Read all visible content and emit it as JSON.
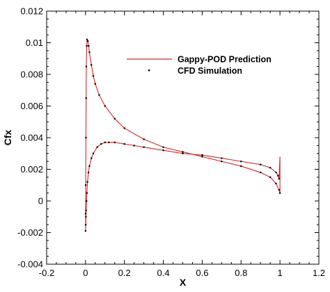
{
  "chart_data": {
    "type": "line",
    "title": "",
    "xlabel": "X",
    "ylabel": "Cfx",
    "xlim": [
      -0.2,
      1.2
    ],
    "ylim": [
      -0.004,
      0.012
    ],
    "xticks": [
      "-0.2",
      "0",
      "0.2",
      "0.4",
      "0.6",
      "0.8",
      "1",
      "1.2"
    ],
    "xtick_values": [
      -0.2,
      0,
      0.2,
      0.4,
      0.6,
      0.8,
      1.0,
      1.2
    ],
    "yticks": [
      "-0.004",
      "-0.002",
      "0",
      "0.002",
      "0.004",
      "0.006",
      "0.008",
      "0.01",
      "0.012"
    ],
    "ytick_values": [
      -0.004,
      -0.002,
      0,
      0.002,
      0.004,
      0.006,
      0.008,
      0.01,
      0.012
    ],
    "grid": false,
    "legend": "top-right",
    "colors": {
      "prediction": "#d62728",
      "simulation": "#000000"
    },
    "series": [
      {
        "name": "Gappy-POD Prediction",
        "style": "line",
        "x": [
          0.0,
          0.0005,
          0.001,
          0.002,
          0.003,
          0.004,
          0.006,
          0.008,
          0.012,
          0.016,
          0.02,
          0.03,
          0.04,
          0.05,
          0.07,
          0.1,
          0.15,
          0.2,
          0.3,
          0.4,
          0.5,
          0.6,
          0.7,
          0.8,
          0.9,
          0.95,
          0.98,
          0.995,
          1.0,
          1.0,
          0.995,
          0.99,
          0.98,
          0.95,
          0.9,
          0.8,
          0.7,
          0.6,
          0.5,
          0.4,
          0.3,
          0.25,
          0.2,
          0.15,
          0.12,
          0.1,
          0.08,
          0.06,
          0.04,
          0.03,
          0.02,
          0.015,
          0.01,
          0.007,
          0.005,
          0.003,
          0.002,
          0.001,
          0.0
        ],
        "y": [
          -0.0019,
          -0.0008,
          0.001,
          0.004,
          0.0065,
          0.0085,
          0.0098,
          0.0102,
          0.0101,
          0.0098,
          0.0094,
          0.0086,
          0.0079,
          0.0074,
          0.0067,
          0.006,
          0.0052,
          0.0046,
          0.0039,
          0.0034,
          0.0031,
          0.0028,
          0.0025,
          0.0022,
          0.0018,
          0.0015,
          0.0011,
          0.0007,
          0.0005,
          0.0028,
          0.0014,
          0.0016,
          0.0018,
          0.0021,
          0.0023,
          0.0025,
          0.0027,
          0.0029,
          0.003,
          0.0032,
          0.0034,
          0.0035,
          0.0036,
          0.0037,
          0.0037,
          0.0037,
          0.0036,
          0.0034,
          0.003,
          0.0027,
          0.0022,
          0.0018,
          0.0012,
          0.0005,
          0.0,
          -0.0006,
          -0.001,
          -0.0015,
          -0.0019
        ]
      },
      {
        "name": "CFD Simulation",
        "style": "markers",
        "x": [
          0.0,
          0.0005,
          0.001,
          0.002,
          0.003,
          0.004,
          0.006,
          0.008,
          0.012,
          0.016,
          0.02,
          0.03,
          0.04,
          0.05,
          0.07,
          0.1,
          0.15,
          0.2,
          0.3,
          0.4,
          0.5,
          0.6,
          0.7,
          0.8,
          0.9,
          0.95,
          0.98,
          0.995,
          1.0,
          0.995,
          0.99,
          0.98,
          0.95,
          0.9,
          0.8,
          0.7,
          0.6,
          0.5,
          0.4,
          0.3,
          0.25,
          0.2,
          0.15,
          0.12,
          0.1,
          0.08,
          0.06,
          0.04,
          0.03,
          0.02,
          0.015,
          0.01,
          0.007,
          0.005,
          0.003,
          0.002,
          0.001
        ],
        "y": [
          -0.0019,
          -0.0008,
          0.001,
          0.004,
          0.0065,
          0.0085,
          0.0098,
          0.0102,
          0.0101,
          0.0098,
          0.0094,
          0.0086,
          0.0079,
          0.0074,
          0.0067,
          0.006,
          0.0052,
          0.0046,
          0.0039,
          0.0034,
          0.0031,
          0.0028,
          0.0025,
          0.0022,
          0.0018,
          0.0015,
          0.0011,
          0.0007,
          0.0005,
          0.0014,
          0.0016,
          0.0018,
          0.0021,
          0.0023,
          0.0025,
          0.0027,
          0.0029,
          0.003,
          0.0032,
          0.0034,
          0.0035,
          0.0036,
          0.0037,
          0.0037,
          0.0037,
          0.0036,
          0.0034,
          0.003,
          0.0027,
          0.0022,
          0.0018,
          0.0012,
          0.0005,
          0.0,
          -0.0006,
          -0.001,
          -0.0015
        ]
      }
    ]
  }
}
